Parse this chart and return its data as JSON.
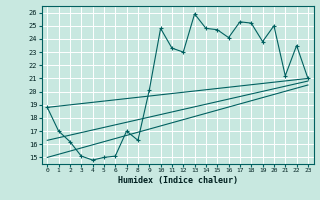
{
  "xlabel": "Humidex (Indice chaleur)",
  "bg_color": "#c8e8e0",
  "grid_color": "#ffffff",
  "line_color": "#006060",
  "xlim": [
    -0.5,
    23.5
  ],
  "ylim": [
    14.5,
    26.5
  ],
  "yticks": [
    15,
    16,
    17,
    18,
    19,
    20,
    21,
    22,
    23,
    24,
    25,
    26
  ],
  "xticks": [
    0,
    1,
    2,
    3,
    4,
    5,
    6,
    7,
    8,
    9,
    10,
    11,
    12,
    13,
    14,
    15,
    16,
    17,
    18,
    19,
    20,
    21,
    22,
    23
  ],
  "series_zigzag": {
    "x": [
      0,
      1,
      2,
      3,
      4,
      5,
      6,
      7,
      8,
      9,
      10,
      11,
      12,
      13,
      14,
      15,
      16,
      17,
      18,
      19,
      20,
      21,
      22,
      23
    ],
    "y": [
      18.8,
      17.0,
      16.2,
      15.1,
      14.8,
      15.0,
      15.1,
      17.0,
      16.3,
      20.1,
      24.8,
      23.3,
      23.0,
      25.9,
      24.8,
      24.7,
      24.1,
      25.3,
      25.2,
      23.8,
      25.0,
      21.2,
      23.5,
      21.0
    ]
  },
  "line_top": {
    "x0": 0,
    "y0": 18.8,
    "x1": 23,
    "y1": 21.0
  },
  "line_mid": {
    "x0": 0,
    "y0": 16.3,
    "x1": 23,
    "y1": 20.8
  },
  "line_bot": {
    "x0": 0,
    "y0": 15.0,
    "x1": 23,
    "y1": 20.5
  }
}
